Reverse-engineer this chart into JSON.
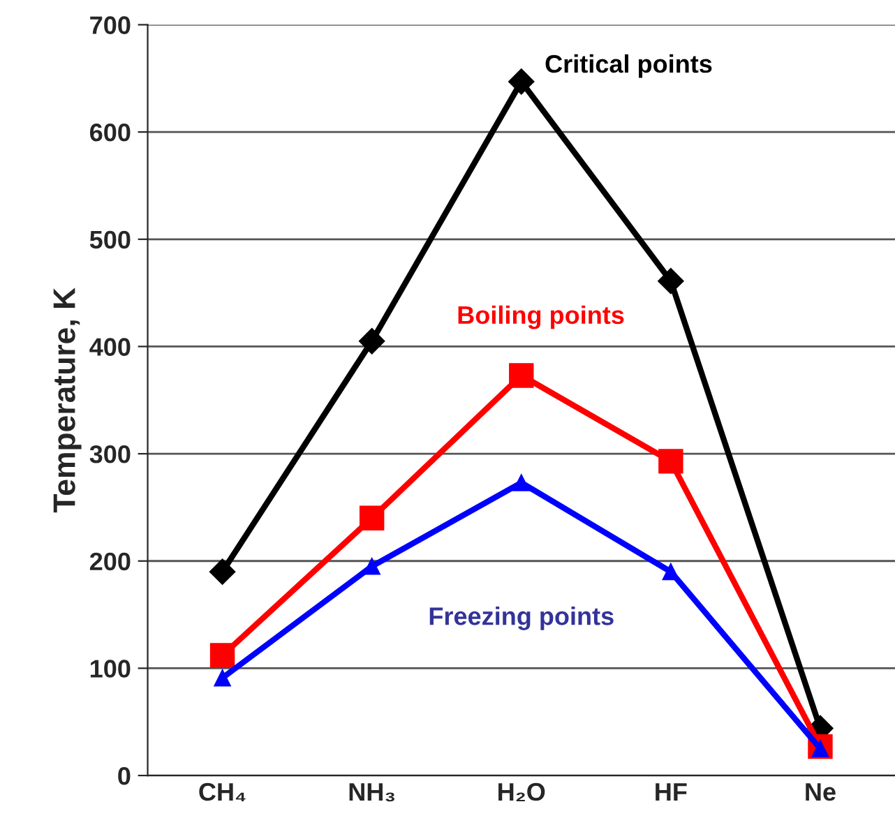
{
  "chart_data": {
    "type": "line",
    "ylabel": "Temperature, K",
    "categories": [
      "CH₄",
      "NH₃",
      "H₂O",
      "HF",
      "Ne"
    ],
    "series": [
      {
        "name": "Critical points",
        "color": "#000000",
        "marker": "diamond",
        "values": [
          190,
          405,
          647,
          461,
          44
        ]
      },
      {
        "name": "Boiling points",
        "color": "#ff0000",
        "marker": "square",
        "values": [
          112,
          240,
          373,
          293,
          27
        ]
      },
      {
        "name": "Freezing points",
        "color": "#0000ff",
        "marker": "triangle",
        "values": [
          91,
          195,
          273,
          190,
          25
        ]
      }
    ],
    "ylim": [
      0,
      700
    ],
    "yticks": [
      0,
      100,
      200,
      300,
      400,
      500,
      600,
      700
    ],
    "grid": "y",
    "legend": false,
    "line_style": "solid"
  }
}
